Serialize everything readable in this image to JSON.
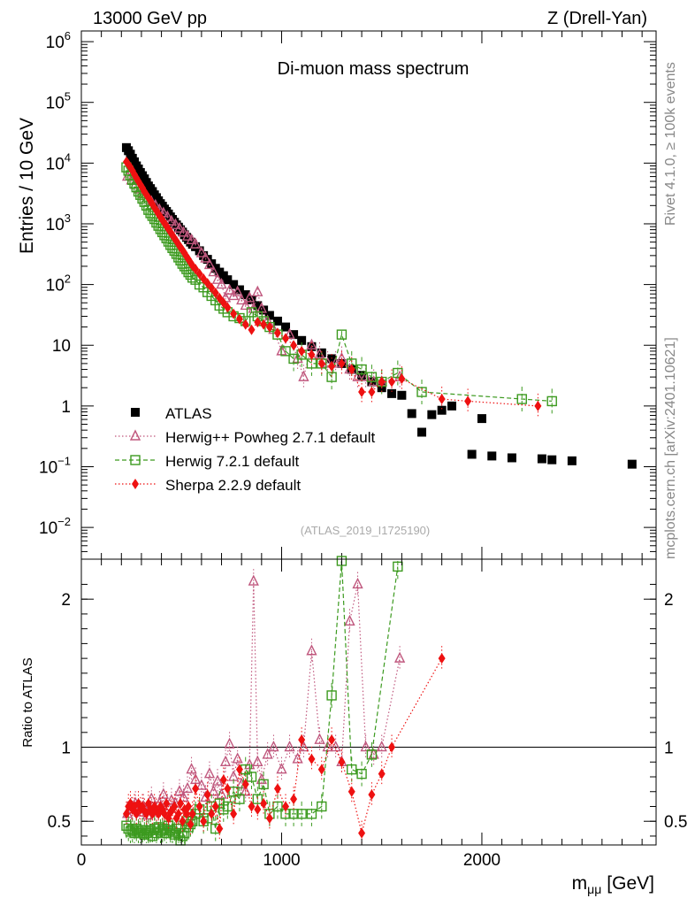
{
  "header": {
    "left": "13000 GeV pp",
    "right": "Z (Drell-Yan)"
  },
  "side_text": {
    "rivet": "Rivet 4.1.0, ≥ 100k events",
    "mcplots": "mcplots.cern.ch [arXiv:2401.10621]"
  },
  "colors": {
    "atlas": "#000000",
    "herwigpp": "#c0587e",
    "herwig7": "#3c9a1f",
    "sherpa": "#ee1111"
  },
  "chart_data": [
    {
      "type": "scatter",
      "title": "Di-muon mass spectrum",
      "watermark": "(ATLAS_2019_I1725190)",
      "xlabel": "m",
      "xlabel_sub": "μμ",
      "xlabel_unit": "[GeV]",
      "ylabel": "Entries / 10 GeV",
      "yscale": "log",
      "xlim": [
        0,
        2870
      ],
      "ylim": [
        0.003,
        1500000
      ],
      "y_ticks": [
        {
          "value": 1000000,
          "label": "10",
          "exp": "6"
        },
        {
          "value": 100000,
          "label": "10",
          "exp": "5"
        },
        {
          "value": 10000,
          "label": "10",
          "exp": "4"
        },
        {
          "value": 1000,
          "label": "10",
          "exp": "3"
        },
        {
          "value": 100,
          "label": "10",
          "exp": "2"
        },
        {
          "value": 10,
          "label": "10",
          "exp": ""
        },
        {
          "value": 1,
          "label": "1",
          "exp": ""
        },
        {
          "value": 0.1,
          "label": "10",
          "exp": "−1"
        },
        {
          "value": 0.01,
          "label": "10",
          "exp": "−2"
        }
      ],
      "legend": [
        {
          "label": "ATLAS",
          "key": "atlas"
        },
        {
          "label": "Herwig++ Powheg 2.7.1 default",
          "key": "herwigpp"
        },
        {
          "label": "Herwig 7.2.1 default",
          "key": "herwig7"
        },
        {
          "label": "Sherpa 2.2.9 default",
          "key": "sherpa"
        }
      ],
      "series": [
        {
          "name": "ATLAS",
          "key": "atlas",
          "marker": "square",
          "x": [
            225,
            235,
            245,
            255,
            265,
            275,
            285,
            295,
            305,
            315,
            325,
            335,
            345,
            355,
            365,
            375,
            385,
            395,
            405,
            415,
            425,
            435,
            445,
            455,
            465,
            475,
            485,
            495,
            505,
            515,
            525,
            535,
            545,
            555,
            570,
            590,
            610,
            630,
            650,
            670,
            690,
            710,
            730,
            760,
            790,
            820,
            850,
            880,
            910,
            940,
            980,
            1020,
            1060,
            1100,
            1150,
            1200,
            1250,
            1300,
            1350,
            1400,
            1450,
            1500,
            1550,
            1600,
            1650,
            1700,
            1750,
            1800,
            1850,
            1950,
            2000,
            2050,
            2150,
            2300,
            2350,
            2450,
            2750
          ],
          "y": [
            18000,
            16000,
            14000,
            12000,
            10500,
            9000,
            8000,
            7000,
            6200,
            5500,
            4800,
            4200,
            3800,
            3400,
            3000,
            2700,
            2400,
            2150,
            1950,
            1750,
            1600,
            1450,
            1300,
            1180,
            1060,
            960,
            880,
            800,
            730,
            660,
            600,
            550,
            500,
            460,
            420,
            360,
            300,
            260,
            220,
            185,
            160,
            140,
            120,
            100,
            82,
            68,
            56,
            45,
            38,
            31,
            25,
            20,
            15,
            12,
            9.5,
            7.5,
            6,
            5,
            4,
            3.2,
            2.5,
            2,
            1.6,
            1.5,
            0.75,
            0.37,
            0.72,
            0.85,
            1.0,
            0.16,
            0.62,
            0.15,
            0.14,
            0.135,
            0.13,
            0.125,
            0.11
          ]
        },
        {
          "name": "Herwig++ Powheg 2.7.1 default",
          "key": "herwigpp",
          "marker": "triangle",
          "x": [
            230,
            250,
            270,
            290,
            310,
            330,
            350,
            370,
            390,
            410,
            430,
            450,
            470,
            490,
            510,
            530,
            550,
            570,
            600,
            620,
            640,
            660,
            680,
            700,
            720,
            740,
            760,
            780,
            800,
            820,
            840,
            860,
            880,
            900,
            930,
            960,
            1000,
            1040,
            1080,
            1110,
            1150,
            1190,
            1230,
            1270,
            1300,
            1340,
            1380,
            1420,
            1460,
            1500,
            1590
          ],
          "y": [
            6000,
            5200,
            4400,
            3700,
            3100,
            2700,
            2300,
            2000,
            1700,
            1500,
            1300,
            1100,
            960,
            840,
            720,
            620,
            540,
            460,
            330,
            270,
            210,
            160,
            120,
            100,
            60,
            80,
            65,
            75,
            55,
            45,
            60,
            40,
            75,
            40,
            25,
            18,
            8,
            15,
            6,
            3,
            10,
            7,
            5,
            5,
            6,
            4,
            3,
            3,
            2.5,
            2.5,
            3
          ]
        },
        {
          "name": "Herwig 7.2.1 default",
          "key": "herwig7",
          "marker": "open_square",
          "x": [
            225,
            235,
            245,
            255,
            265,
            275,
            285,
            295,
            305,
            315,
            325,
            335,
            345,
            355,
            365,
            375,
            385,
            395,
            405,
            415,
            425,
            435,
            445,
            455,
            465,
            475,
            485,
            495,
            505,
            515,
            525,
            535,
            545,
            555,
            570,
            590,
            610,
            630,
            650,
            670,
            690,
            710,
            730,
            760,
            790,
            820,
            850,
            880,
            910,
            940,
            980,
            1020,
            1060,
            1100,
            1150,
            1200,
            1250,
            1300,
            1350,
            1400,
            1450,
            1500,
            1580,
            1700,
            2200,
            2350
          ],
          "y": [
            8500,
            7500,
            6300,
            5300,
            4600,
            4000,
            3400,
            3000,
            2600,
            2300,
            2000,
            1700,
            1500,
            1350,
            1200,
            1050,
            930,
            820,
            730,
            650,
            580,
            510,
            450,
            400,
            360,
            320,
            280,
            250,
            220,
            200,
            180,
            160,
            145,
            130,
            120,
            100,
            90,
            75,
            65,
            55,
            45,
            40,
            35,
            30,
            28,
            25,
            35,
            30,
            25,
            20,
            15,
            8,
            6,
            7,
            5,
            5,
            3,
            15,
            5,
            4,
            3,
            2.5,
            3.5,
            1.7,
            1.3,
            1.2
          ]
        },
        {
          "name": "Sherpa 2.2.9 default",
          "key": "sherpa",
          "marker": "diamond",
          "x": [
            225,
            235,
            245,
            255,
            265,
            275,
            285,
            295,
            305,
            315,
            325,
            335,
            345,
            355,
            365,
            375,
            385,
            395,
            405,
            415,
            425,
            435,
            445,
            455,
            465,
            475,
            485,
            495,
            505,
            515,
            525,
            535,
            545,
            555,
            570,
            590,
            610,
            630,
            650,
            670,
            690,
            710,
            730,
            760,
            790,
            820,
            850,
            880,
            910,
            940,
            980,
            1020,
            1060,
            1100,
            1150,
            1200,
            1250,
            1300,
            1350,
            1400,
            1450,
            1500,
            1550,
            1600,
            1800,
            1930,
            2280
          ],
          "y": [
            10500,
            9500,
            8500,
            7500,
            6500,
            5700,
            5000,
            4400,
            3900,
            3400,
            3000,
            2700,
            2400,
            2100,
            1850,
            1650,
            1450,
            1300,
            1150,
            1030,
            920,
            820,
            730,
            650,
            580,
            520,
            460,
            410,
            370,
            330,
            290,
            260,
            230,
            205,
            180,
            150,
            125,
            105,
            88,
            73,
            60,
            50,
            42,
            33,
            27,
            22,
            18,
            24,
            22,
            20,
            16,
            13,
            10,
            8,
            7,
            5,
            4.5,
            5,
            4,
            1.7,
            1.7,
            2.5,
            2.5,
            2.8,
            1.3,
            1.2,
            1.0
          ]
        }
      ]
    },
    {
      "type": "scatter",
      "title": "",
      "ylabel": "Ratio to ATLAS",
      "xlim": [
        0,
        2870
      ],
      "ylim": [
        0.34,
        2.27
      ],
      "x_ticks": [
        {
          "value": 0,
          "label": "0"
        },
        {
          "value": 1000,
          "label": "1000"
        },
        {
          "value": 2000,
          "label": "2000"
        }
      ],
      "y_ticks": [
        {
          "value": 0.5,
          "label": "0.5"
        },
        {
          "value": 1,
          "label": "1"
        },
        {
          "value": 2,
          "label": "2"
        }
      ],
      "reference_line": 1,
      "series": [
        {
          "name": "Herwig++ Powheg 2.7.1 default",
          "key": "herwigpp",
          "marker": "triangle",
          "x": [
            230,
            250,
            270,
            290,
            310,
            330,
            350,
            370,
            390,
            410,
            430,
            450,
            470,
            490,
            510,
            530,
            550,
            570,
            600,
            620,
            640,
            660,
            680,
            700,
            720,
            740,
            760,
            780,
            800,
            820,
            840,
            860,
            880,
            900,
            930,
            960,
            1000,
            1040,
            1080,
            1110,
            1150,
            1190,
            1230,
            1270,
            1300,
            1340,
            1380,
            1420,
            1460,
            1500,
            1590
          ],
          "y": [
            0.55,
            0.58,
            0.62,
            0.56,
            0.6,
            0.54,
            0.65,
            0.58,
            0.62,
            0.68,
            0.6,
            0.64,
            0.62,
            0.7,
            0.66,
            0.72,
            0.85,
            0.78,
            0.74,
            0.66,
            0.82,
            0.7,
            0.77,
            0.68,
            0.9,
            1.02,
            0.8,
            0.92,
            0.75,
            0.7,
            0.88,
            2.12,
            0.9,
            0.78,
            0.95,
            1.0,
            0.85,
            1.0,
            0.92,
            1.0,
            1.65,
            1.05,
            1.0,
            1.0,
            0.9,
            1.85,
            2.1,
            1.0,
            0.95,
            1.0,
            1.6
          ]
        },
        {
          "name": "Herwig 7.2.1 default",
          "key": "herwig7",
          "marker": "open_square",
          "x": [
            225,
            235,
            245,
            255,
            265,
            275,
            285,
            295,
            305,
            315,
            325,
            335,
            345,
            355,
            365,
            375,
            385,
            395,
            405,
            415,
            425,
            435,
            445,
            455,
            465,
            475,
            485,
            495,
            505,
            515,
            525,
            535,
            545,
            555,
            570,
            590,
            610,
            630,
            650,
            670,
            690,
            710,
            730,
            760,
            790,
            820,
            850,
            880,
            910,
            940,
            980,
            1020,
            1060,
            1100,
            1150,
            1200,
            1250,
            1300,
            1350,
            1400,
            1450,
            1580
          ],
          "y": [
            0.47,
            0.45,
            0.43,
            0.44,
            0.42,
            0.45,
            0.43,
            0.42,
            0.44,
            0.41,
            0.42,
            0.43,
            0.44,
            0.4,
            0.45,
            0.42,
            0.46,
            0.43,
            0.44,
            0.45,
            0.42,
            0.47,
            0.44,
            0.43,
            0.41,
            0.45,
            0.42,
            0.37,
            0.4,
            0.42,
            0.5,
            0.46,
            0.48,
            0.5,
            0.55,
            0.58,
            0.5,
            0.52,
            0.6,
            0.45,
            0.62,
            0.58,
            0.6,
            0.7,
            0.65,
            0.85,
            0.8,
            0.65,
            0.75,
            0.55,
            0.6,
            0.55,
            0.55,
            0.55,
            0.55,
            0.6,
            1.35,
            2.3,
            0.85,
            0.82,
            0.95,
            2.22
          ]
        },
        {
          "name": "Sherpa 2.2.9 default",
          "key": "sherpa",
          "marker": "diamond",
          "x": [
            225,
            235,
            245,
            255,
            265,
            275,
            285,
            295,
            305,
            315,
            325,
            335,
            345,
            355,
            365,
            375,
            385,
            395,
            405,
            415,
            425,
            435,
            445,
            455,
            465,
            475,
            485,
            495,
            505,
            515,
            525,
            535,
            545,
            555,
            570,
            590,
            610,
            630,
            650,
            670,
            690,
            710,
            730,
            760,
            790,
            820,
            850,
            880,
            910,
            940,
            980,
            1020,
            1060,
            1100,
            1150,
            1200,
            1250,
            1300,
            1350,
            1400,
            1450,
            1500,
            1550,
            1800
          ],
          "y": [
            0.55,
            0.6,
            0.62,
            0.58,
            0.6,
            0.55,
            0.62,
            0.58,
            0.6,
            0.57,
            0.55,
            0.62,
            0.58,
            0.55,
            0.6,
            0.57,
            0.55,
            0.6,
            0.58,
            0.55,
            0.62,
            0.52,
            0.56,
            0.58,
            0.6,
            0.52,
            0.55,
            0.62,
            0.5,
            0.58,
            0.55,
            0.6,
            0.48,
            0.55,
            0.72,
            0.6,
            0.5,
            0.68,
            0.55,
            0.6,
            0.45,
            0.78,
            0.72,
            0.55,
            0.85,
            0.75,
            0.6,
            0.58,
            0.62,
            0.52,
            0.72,
            0.6,
            0.65,
            1.05,
            0.92,
            0.85,
            1.05,
            0.9,
            0.7,
            0.42,
            0.68,
            0.82,
            1.0,
            1.6
          ]
        }
      ]
    }
  ]
}
